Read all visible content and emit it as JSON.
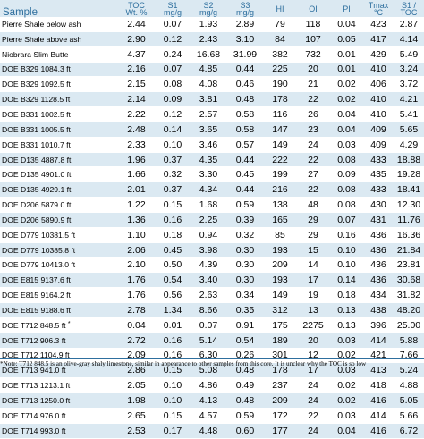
{
  "headers": {
    "sample": "Sample",
    "toc": [
      "TOC",
      "Wt. %"
    ],
    "s1": [
      "S1",
      "mg/g"
    ],
    "s2": [
      "S2",
      "mg/g"
    ],
    "s3": [
      "S3",
      "mg/g"
    ],
    "hi": "HI",
    "oi": "OI",
    "pi": "PI",
    "tmax": [
      "Tmax",
      "°C"
    ],
    "s1toc": [
      "S1 /",
      "TOC"
    ]
  },
  "rows": [
    {
      "sample": "Pierre Shale below ash",
      "toc": "2.44",
      "s1": "0.07",
      "s2": "1.93",
      "s3": "2.89",
      "hi": "79",
      "oi": "118",
      "pi": "0.04",
      "tmax": "423",
      "s1toc": "2.87"
    },
    {
      "sample": "Pierre Shale above ash",
      "toc": "2.90",
      "s1": "0.12",
      "s2": "2.43",
      "s3": "3.10",
      "hi": "84",
      "oi": "107",
      "pi": "0.05",
      "tmax": "417",
      "s1toc": "4.14"
    },
    {
      "sample": "Niobrara Slim Butte",
      "toc": "4.37",
      "s1": "0.24",
      "s2": "16.68",
      "s3": "31.99",
      "hi": "382",
      "oi": "732",
      "pi": "0.01",
      "tmax": "429",
      "s1toc": "5.49"
    },
    {
      "sample": "DOE B329 1084.3 ft",
      "toc": "2.16",
      "s1": "0.07",
      "s2": "4.85",
      "s3": "0.44",
      "hi": "225",
      "oi": "20",
      "pi": "0.01",
      "tmax": "410",
      "s1toc": "3.24"
    },
    {
      "sample": "DOE B329 1092.5 ft",
      "toc": "2.15",
      "s1": "0.08",
      "s2": "4.08",
      "s3": "0.46",
      "hi": "190",
      "oi": "21",
      "pi": "0.02",
      "tmax": "406",
      "s1toc": "3.72"
    },
    {
      "sample": "DOE B329 1128.5 ft",
      "toc": "2.14",
      "s1": "0.09",
      "s2": "3.81",
      "s3": "0.48",
      "hi": "178",
      "oi": "22",
      "pi": "0.02",
      "tmax": "410",
      "s1toc": "4.21"
    },
    {
      "sample": "DOE B331 1002.5 ft",
      "toc": "2.22",
      "s1": "0.12",
      "s2": "2.57",
      "s3": "0.58",
      "hi": "116",
      "oi": "26",
      "pi": "0.04",
      "tmax": "410",
      "s1toc": "5.41"
    },
    {
      "sample": "DOE B331 1005.5 ft",
      "toc": "2.48",
      "s1": "0.14",
      "s2": "3.65",
      "s3": "0.58",
      "hi": "147",
      "oi": "23",
      "pi": "0.04",
      "tmax": "409",
      "s1toc": "5.65"
    },
    {
      "sample": "DOE B331 1010.7 ft",
      "toc": "2.33",
      "s1": "0.10",
      "s2": "3.46",
      "s3": "0.57",
      "hi": "149",
      "oi": "24",
      "pi": "0.03",
      "tmax": "409",
      "s1toc": "4.29"
    },
    {
      "sample": "DOE D135 4887.8 ft",
      "toc": "1.96",
      "s1": "0.37",
      "s2": "4.35",
      "s3": "0.44",
      "hi": "222",
      "oi": "22",
      "pi": "0.08",
      "tmax": "433",
      "s1toc": "18.88"
    },
    {
      "sample": "DOE D135 4901.0 ft",
      "toc": "1.66",
      "s1": "0.32",
      "s2": "3.30",
      "s3": "0.45",
      "hi": "199",
      "oi": "27",
      "pi": "0.09",
      "tmax": "435",
      "s1toc": "19.28"
    },
    {
      "sample": "DOE D135 4929.1 ft",
      "toc": "2.01",
      "s1": "0.37",
      "s2": "4.34",
      "s3": "0.44",
      "hi": "216",
      "oi": "22",
      "pi": "0.08",
      "tmax": "433",
      "s1toc": "18.41"
    },
    {
      "sample": "DOE D206 5879.0 ft",
      "toc": "1.22",
      "s1": "0.15",
      "s2": "1.68",
      "s3": "0.59",
      "hi": "138",
      "oi": "48",
      "pi": "0.08",
      "tmax": "430",
      "s1toc": "12.30"
    },
    {
      "sample": "DOE D206 5890.9 ft",
      "toc": "1.36",
      "s1": "0.16",
      "s2": "2.25",
      "s3": "0.39",
      "hi": "165",
      "oi": "29",
      "pi": "0.07",
      "tmax": "431",
      "s1toc": "11.76"
    },
    {
      "sample": "DOE D779 10381.5 ft",
      "toc": "1.10",
      "s1": "0.18",
      "s2": "0.94",
      "s3": "0.32",
      "hi": "85",
      "oi": "29",
      "pi": "0.16",
      "tmax": "436",
      "s1toc": "16.36"
    },
    {
      "sample": "DOE D779 10385.8 ft",
      "toc": "2.06",
      "s1": "0.45",
      "s2": "3.98",
      "s3": "0.30",
      "hi": "193",
      "oi": "15",
      "pi": "0.10",
      "tmax": "436",
      "s1toc": "21.84"
    },
    {
      "sample": "DOE D779 10413.0 ft",
      "toc": "2.10",
      "s1": "0.50",
      "s2": "4.39",
      "s3": "0.30",
      "hi": "209",
      "oi": "14",
      "pi": "0.10",
      "tmax": "436",
      "s1toc": "23.81"
    },
    {
      "sample": "DOE E815 9137.6 ft",
      "toc": "1.76",
      "s1": "0.54",
      "s2": "3.40",
      "s3": "0.30",
      "hi": "193",
      "oi": "17",
      "pi": "0.14",
      "tmax": "436",
      "s1toc": "30.68"
    },
    {
      "sample": "DOE E815 9164.2 ft",
      "toc": "1.76",
      "s1": "0.56",
      "s2": "2.63",
      "s3": "0.34",
      "hi": "149",
      "oi": "19",
      "pi": "0.18",
      "tmax": "434",
      "s1toc": "31.82"
    },
    {
      "sample": "DOE E815 9188.6 ft",
      "toc": "2.78",
      "s1": "1.34",
      "s2": "8.66",
      "s3": "0.35",
      "hi": "312",
      "oi": "13",
      "pi": "0.13",
      "tmax": "438",
      "s1toc": "48.20"
    },
    {
      "sample": "DOE T712 848.5 ft",
      "star": "*",
      "toc": "0.04",
      "s1": "0.01",
      "s2": "0.07",
      "s3": "0.91",
      "hi": "175",
      "oi": "2275",
      "pi": "0.13",
      "tmax": "396",
      "s1toc": "25.00"
    },
    {
      "sample": "DOE T712 906.3 ft",
      "toc": "2.72",
      "s1": "0.16",
      "s2": "5.14",
      "s3": "0.54",
      "hi": "189",
      "oi": "20",
      "pi": "0.03",
      "tmax": "414",
      "s1toc": "5.88"
    },
    {
      "sample": "DOE T712 1104.9 ft",
      "toc": "2.09",
      "s1": "0.16",
      "s2": "6.30",
      "s3": "0.26",
      "hi": "301",
      "oi": "12",
      "pi": "0.02",
      "tmax": "421",
      "s1toc": "7.66"
    },
    {
      "sample": "DOE T713 941.0 ft",
      "toc": "2.86",
      "s1": "0.15",
      "s2": "5.08",
      "s3": "0.48",
      "hi": "178",
      "oi": "17",
      "pi": "0.03",
      "tmax": "413",
      "s1toc": "5.24"
    },
    {
      "sample": "DOE T713 1213.1 ft",
      "toc": "2.05",
      "s1": "0.10",
      "s2": "4.86",
      "s3": "0.49",
      "hi": "237",
      "oi": "24",
      "pi": "0.02",
      "tmax": "418",
      "s1toc": "4.88"
    },
    {
      "sample": "DOE T713 1250.0 ft",
      "toc": "1.98",
      "s1": "0.10",
      "s2": "4.13",
      "s3": "0.48",
      "hi": "209",
      "oi": "24",
      "pi": "0.02",
      "tmax": "416",
      "s1toc": "5.05"
    },
    {
      "sample": "DOE T714 976.0 ft",
      "toc": "2.65",
      "s1": "0.15",
      "s2": "4.57",
      "s3": "0.59",
      "hi": "172",
      "oi": "22",
      "pi": "0.03",
      "tmax": "414",
      "s1toc": "5.66"
    },
    {
      "sample": "DOE T714 993.0 ft",
      "toc": "2.53",
      "s1": "0.17",
      "s2": "4.48",
      "s3": "0.60",
      "hi": "177",
      "oi": "24",
      "pi": "0.04",
      "tmax": "416",
      "s1toc": "6.72"
    }
  ],
  "note": "*Note: T712 848.5 is an olive-gray shaly limestone, similar in appearance to other samples from this core.  It is unclear why the TOC is so low",
  "colors": {
    "header_bg": "#dbe9f2",
    "header_text": "#2e6f9e",
    "stripe": "#dbe9f2"
  }
}
